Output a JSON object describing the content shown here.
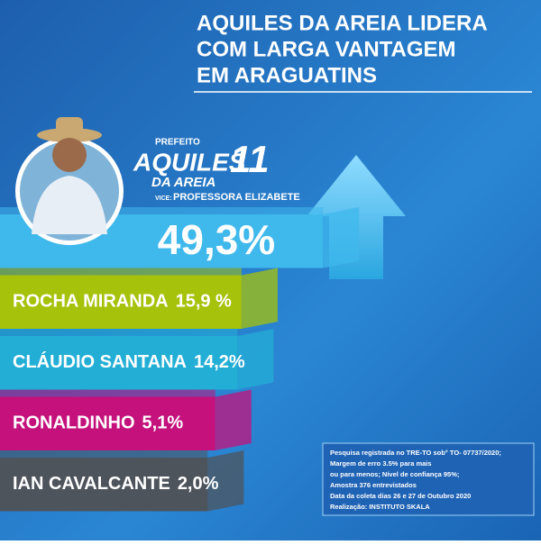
{
  "header": {
    "title_lines": [
      "AQUILES DA AREIA LIDERA",
      "COM LARGA VANTAGEM",
      "EM ARAGUATINS"
    ]
  },
  "logo": {
    "prefix": "PREFEITO",
    "name": "AQUILES",
    "surname": "DA AREIA",
    "number": "11",
    "vice_label": "VICE:",
    "vice": "PROFESSORA ELIZABETE"
  },
  "chart_data": {
    "type": "bar",
    "categories": [
      null,
      "ROCHA MIRANDA",
      "CLÁUDIO SANTANA",
      "RONALDINHO",
      "IAN CAVALCANTE"
    ],
    "values": [
      49.3,
      15.9,
      14.2,
      5.1,
      2.0
    ],
    "value_labels": [
      "49,3%",
      "15,9 %",
      "14,2%",
      "5,1%",
      "2,0%"
    ],
    "colors": [
      "#3fb8ec",
      "#a6c20a",
      "#23aed6",
      "#c4117c",
      "#4e545c"
    ]
  },
  "note": {
    "lines": [
      "Pesquisa registrada no TRE-TO sob° TO- 07737/2020;",
      "Margem de erro 3.5% para mais",
      "ou para menos; Nível de confiança 95%;",
      "Amostra 376 entrevistados",
      "Data da coleta dias 26 e 27 de Outubro 2020",
      "Realização: INSTITUTO SKALA"
    ]
  }
}
